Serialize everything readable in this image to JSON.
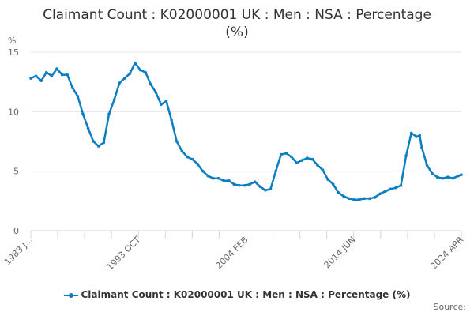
{
  "chart": {
    "title_line1": "Claimant Count : K02000001 UK : Men : NSA : Percentage",
    "title_line2": "(%)",
    "unit_label": "%",
    "legend_label": "Claimant Count : K02000001 UK : Men : NSA : Percentage (%)",
    "source_label": "Source:",
    "series_color": "#0b7ec1"
  },
  "chart_data": {
    "type": "line",
    "title": "Claimant Count : K02000001 UK : Men : NSA : Percentage (%)",
    "xlabel": "",
    "ylabel": "%",
    "ylim": [
      0,
      15
    ],
    "yticks": [
      0,
      5,
      10,
      15
    ],
    "xtick_labels": [
      "1983 J...",
      "1993 OCT",
      "2004 FEB",
      "2014 JUN",
      "2024 APR"
    ],
    "grid": true,
    "legend_position": "bottom",
    "series": [
      {
        "name": "Claimant Count : K02000001 UK : Men : NSA : Percentage (%)",
        "x": [
          1983.0,
          1983.5,
          1984.0,
          1984.5,
          1985.0,
          1985.5,
          1986.0,
          1986.5,
          1987.0,
          1987.5,
          1988.0,
          1988.5,
          1989.0,
          1989.5,
          1990.0,
          1990.5,
          1991.0,
          1991.5,
          1992.0,
          1992.5,
          1993.0,
          1993.5,
          1994.0,
          1994.5,
          1995.0,
          1995.5,
          1996.0,
          1996.5,
          1997.0,
          1997.5,
          1998.0,
          1998.5,
          1999.0,
          1999.5,
          2000.0,
          2000.5,
          2001.0,
          2001.5,
          2002.0,
          2002.5,
          2003.0,
          2003.5,
          2004.0,
          2004.5,
          2005.0,
          2005.5,
          2006.0,
          2006.5,
          2007.0,
          2007.5,
          2008.0,
          2008.5,
          2009.0,
          2009.5,
          2010.0,
          2010.5,
          2011.0,
          2011.5,
          2012.0,
          2012.5,
          2013.0,
          2013.5,
          2014.0,
          2014.5,
          2015.0,
          2015.5,
          2016.0,
          2016.5,
          2017.0,
          2017.5,
          2018.0,
          2018.5,
          2019.0,
          2019.5,
          2020.0,
          2020.3,
          2020.5,
          2021.0,
          2021.5,
          2022.0,
          2022.5,
          2023.0,
          2023.5,
          2024.0,
          2024.3
        ],
        "values": [
          12.8,
          13.0,
          12.6,
          13.3,
          13.0,
          13.6,
          13.1,
          13.1,
          12.0,
          11.3,
          9.8,
          8.6,
          7.5,
          7.1,
          7.4,
          9.8,
          11.0,
          12.4,
          12.8,
          13.2,
          14.1,
          13.5,
          13.3,
          12.3,
          11.6,
          10.6,
          10.9,
          9.3,
          7.5,
          6.7,
          6.2,
          6.0,
          5.6,
          5.0,
          4.6,
          4.4,
          4.4,
          4.2,
          4.2,
          3.9,
          3.8,
          3.8,
          3.9,
          4.1,
          3.7,
          3.4,
          3.5,
          5.0,
          6.4,
          6.5,
          6.2,
          5.7,
          5.9,
          6.1,
          6.0,
          5.5,
          5.1,
          4.3,
          3.9,
          3.2,
          2.9,
          2.7,
          2.6,
          2.6,
          2.7,
          2.7,
          2.8,
          3.1,
          3.3,
          3.5,
          3.6,
          3.8,
          6.3,
          8.2,
          7.9,
          8.0,
          7.0,
          5.5,
          4.8,
          4.5,
          4.4,
          4.5,
          4.4,
          4.6,
          4.7
        ]
      }
    ]
  }
}
